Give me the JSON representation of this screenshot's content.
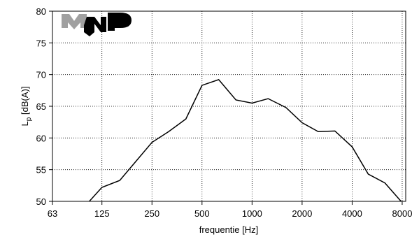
{
  "chart_data": {
    "type": "line",
    "log_x": true,
    "grid": true,
    "x_label": "frequentie [Hz]",
    "y_label": [
      "L",
      "p",
      " [dB(A)]"
    ],
    "x": [
      100,
      125,
      160,
      200,
      250,
      315,
      400,
      500,
      630,
      800,
      1000,
      1250,
      1600,
      2000,
      2500,
      3150,
      4000,
      5000,
      6300,
      8000
    ],
    "series": [
      {
        "color": "#000000",
        "values": [
          49.4,
          52.2,
          53.3,
          56.3,
          59.3,
          61.0,
          63.0,
          68.3,
          69.2,
          66.0,
          65.5,
          66.2,
          64.8,
          62.4,
          61.0,
          61.1,
          58.6,
          54.3,
          52.9,
          49.8
        ]
      }
    ],
    "xlim": [
      63,
      8400
    ],
    "xticks": [
      63,
      125,
      250,
      500,
      1000,
      2000,
      4000,
      8000
    ],
    "ylim": [
      50,
      80
    ],
    "yticks": [
      50,
      55,
      60,
      65,
      70,
      75,
      80
    ]
  }
}
